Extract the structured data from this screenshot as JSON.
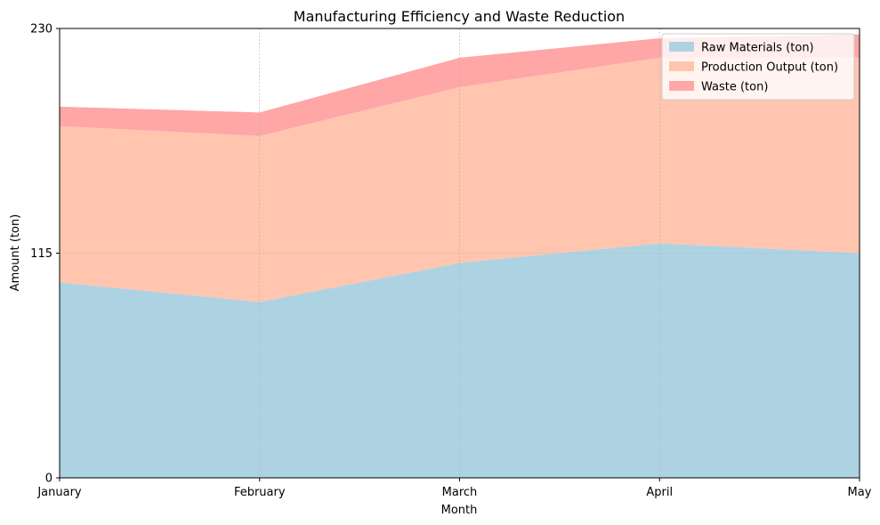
{
  "chart_data": {
    "type": "area",
    "stacked": true,
    "title": "Manufacturing Efficiency and Waste Reduction",
    "xlabel": "Month",
    "ylabel": "Amount (ton)",
    "categories": [
      "January",
      "February",
      "March",
      "April",
      "May"
    ],
    "ylim": [
      0,
      230
    ],
    "yticks": [
      0,
      115,
      230
    ],
    "grid": true,
    "legend_position": "top-right",
    "series": [
      {
        "name": "Raw Materials (ton)",
        "values": [
          100,
          90,
          110,
          120,
          115
        ],
        "color": "#add3e3"
      },
      {
        "name": "Production Output (ton)",
        "values": [
          80,
          85,
          90,
          95,
          100
        ],
        "color": "#ffc5af"
      },
      {
        "name": "Waste (ton)",
        "values": [
          10,
          12,
          15,
          10,
          12
        ],
        "color": "#ffa6a7"
      }
    ]
  }
}
